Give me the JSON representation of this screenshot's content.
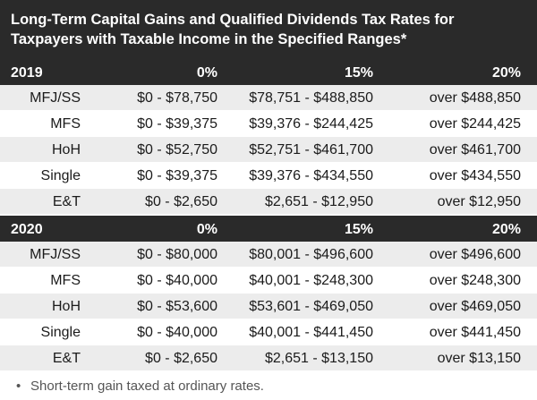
{
  "title_line1": "Long-Term Capital Gains and Qualified Dividends Tax Rates for",
  "title_line2": "Taxpayers with Taxable Income in the Specified Ranges*",
  "tables": [
    {
      "year": "2019",
      "headers": [
        "0%",
        "15%",
        "20%"
      ],
      "rows": [
        [
          "MFJ/SS",
          "$0 - $78,750",
          "$78,751 - $488,850",
          "over $488,850"
        ],
        [
          "MFS",
          "$0 - $39,375",
          "$39,376 - $244,425",
          "over $244,425"
        ],
        [
          "HoH",
          "$0 - $52,750",
          "$52,751 - $461,700",
          "over $461,700"
        ],
        [
          "Single",
          "$0 - $39,375",
          "$39,376 - $434,550",
          "over $434,550"
        ],
        [
          "E&T",
          "$0 - $2,650",
          "$2,651 - $12,950",
          "over $12,950"
        ]
      ]
    },
    {
      "year": "2020",
      "headers": [
        "0%",
        "15%",
        "20%"
      ],
      "rows": [
        [
          "MFJ/SS",
          "$0 - $80,000",
          "$80,001 - $496,600",
          "over $496,600"
        ],
        [
          "MFS",
          "$0 - $40,000",
          "$40,001 - $248,300",
          "over $248,300"
        ],
        [
          "HoH",
          "$0 - $53,600",
          "$53,601 - $469,050",
          "over $469,050"
        ],
        [
          "Single",
          "$0 - $40,000",
          "$40,001 - $441,450",
          "over $441,450"
        ],
        [
          "E&T",
          "$0 - $2,650",
          "$2,651 - $13,150",
          "over $13,150"
        ]
      ]
    }
  ],
  "footnote": "Short-term gain taxed at ordinary rates.",
  "bullet": "•"
}
